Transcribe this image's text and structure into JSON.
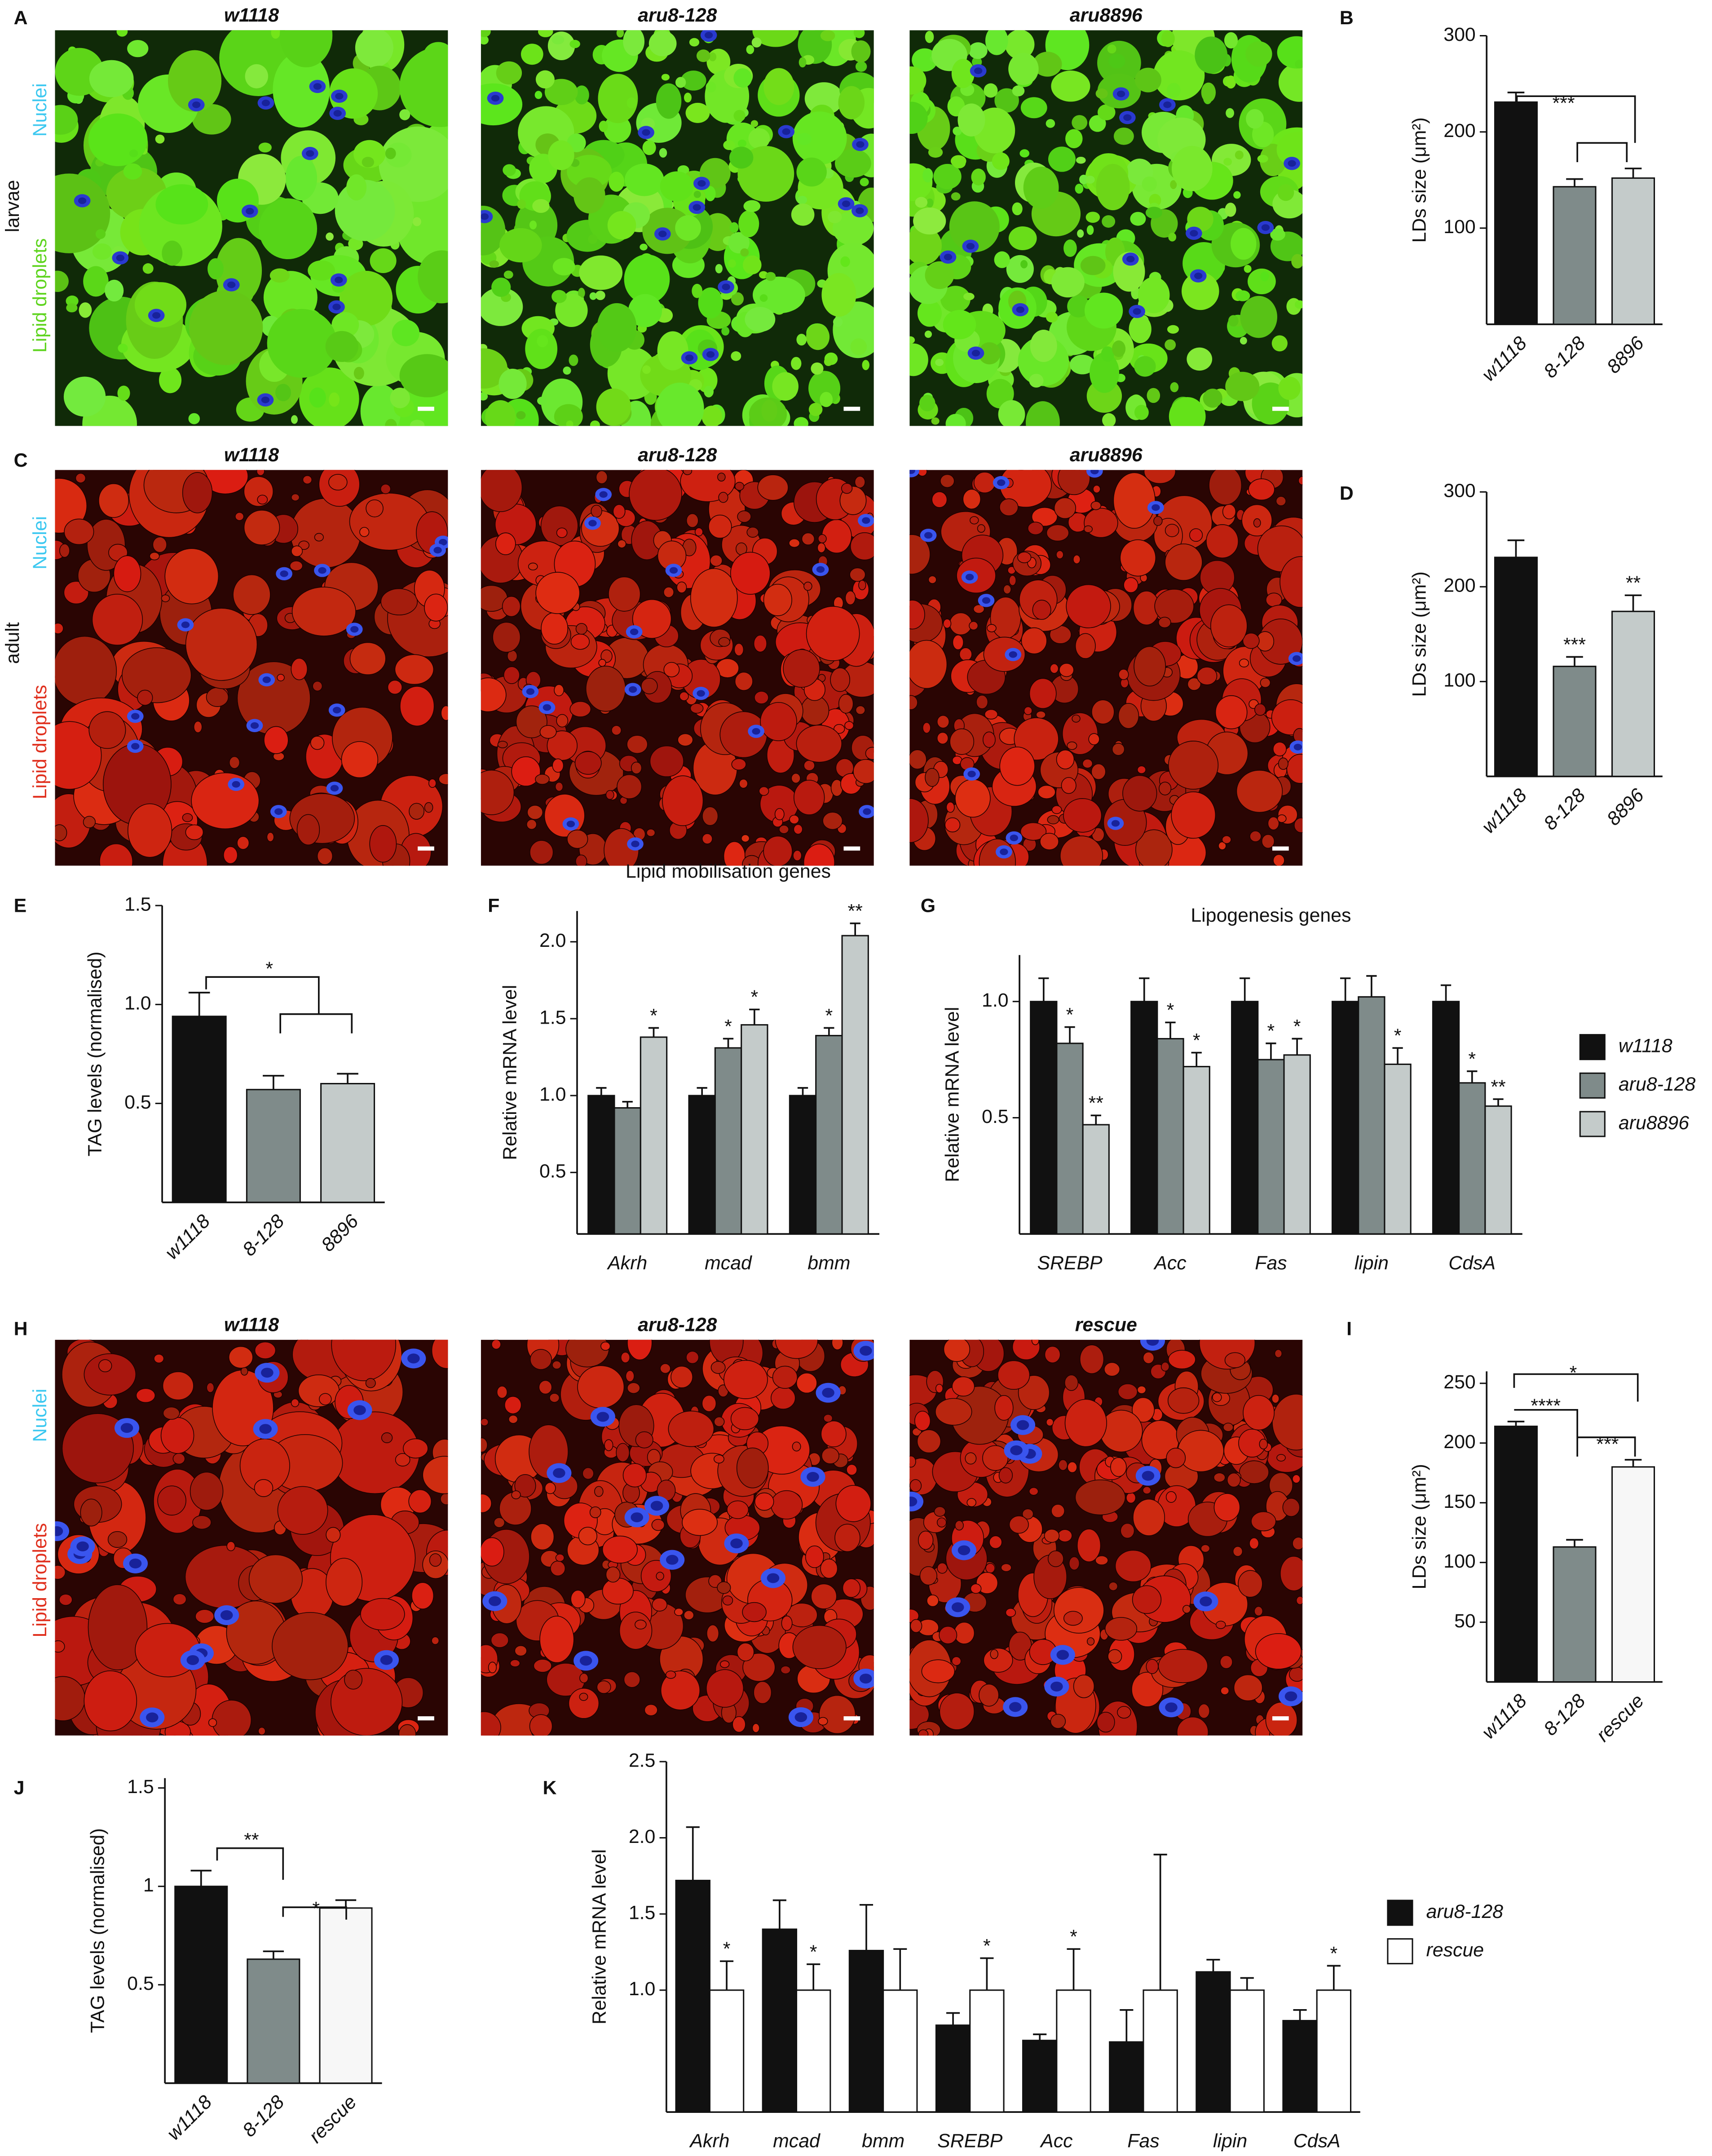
{
  "panel_labels": [
    "A",
    "B",
    "C",
    "D",
    "E",
    "F",
    "G",
    "H",
    "I",
    "J",
    "K"
  ],
  "image_rows": [
    {
      "titles": [
        "w1118",
        "aru8-128",
        "aru8896"
      ],
      "side": [
        "Nuclei",
        "larvae",
        "Lipid droplets"
      ]
    },
    {
      "titles": [
        "w1118",
        "aru8-128",
        "aru8896"
      ],
      "side": [
        "Nuclei",
        "adult",
        "Lipid droplets"
      ]
    },
    {
      "titles": [
        "w1118",
        "aru8-128",
        "rescue"
      ],
      "side": [
        "Nuclei",
        "Lipid droplets"
      ]
    }
  ],
  "chart_data": [
    {
      "type": "bar",
      "ylabel": "LDs size (μm²)",
      "categories": [
        "w1118",
        "8-128",
        "8896"
      ],
      "values": [
        231,
        143,
        152
      ],
      "errors": [
        10,
        8,
        10
      ],
      "colors": [
        "#111111",
        "#7f8b8a",
        "#c4cbca"
      ],
      "ylim": [
        0,
        300
      ],
      "yticks": [
        100,
        200,
        300
      ],
      "annotations": [
        "***"
      ]
    },
    {
      "type": "bar",
      "ylabel": "LDs size (μm²)",
      "categories": [
        "w1118",
        "8-128",
        "8896"
      ],
      "values": [
        231,
        116,
        174
      ],
      "errors": [
        18,
        10,
        17
      ],
      "colors": [
        "#111111",
        "#7f8b8a",
        "#c4cbca"
      ],
      "ylim": [
        0,
        300
      ],
      "yticks": [
        100,
        200,
        300
      ],
      "annotations": [
        "***",
        "**"
      ]
    },
    {
      "type": "bar",
      "ylabel": "TAG levels (normalised)",
      "categories": [
        "w1118",
        "8-128",
        "8896"
      ],
      "values": [
        0.94,
        0.57,
        0.6
      ],
      "errors": [
        0.12,
        0.07,
        0.05
      ],
      "colors": [
        "#111111",
        "#7f8b8a",
        "#c4cbca"
      ],
      "ylim": [
        0,
        1.5
      ],
      "yticks": [
        0.5,
        {
          "value": 1,
          "label": "1.0"
        },
        1.5
      ],
      "annotations": [
        "*"
      ]
    },
    {
      "type": "bar",
      "title": "Lipid mobilisation genes",
      "ylabel": "Relative mRNA level",
      "categories": [
        "Akrh",
        "mcad",
        "bmm"
      ],
      "series": [
        {
          "color": "#111111",
          "values": [
            1,
            1,
            1
          ],
          "errors": [
            0.05,
            0.05,
            0.05
          ]
        },
        {
          "color": "#7f8b8a",
          "values": [
            0.92,
            1.31,
            1.39
          ],
          "errors": [
            0.04,
            0.06,
            0.05
          ]
        },
        {
          "color": "#c4cbca",
          "values": [
            1.38,
            1.46,
            2.04
          ],
          "errors": [
            0.06,
            0.1,
            0.08
          ]
        }
      ],
      "ylim": [
        0.1,
        2.2
      ],
      "yticks": [
        0.5,
        {
          "value": 1,
          "label": "1.0"
        },
        1.5,
        {
          "value": 2,
          "label": "2.0"
        }
      ],
      "annotations": [
        "*",
        "*",
        "*",
        "*",
        "**"
      ]
    },
    {
      "type": "bar",
      "title": "Lipogenesis genes",
      "ylabel": "Relative mRNA level",
      "categories": [
        "SREBP",
        "Acc",
        "Fas",
        "lipin",
        "CdsA"
      ],
      "series": [
        {
          "name": "w1118",
          "color": "#111111",
          "values": [
            1,
            1,
            1,
            1,
            1
          ],
          "errors": [
            0.1,
            0.1,
            0.1,
            0.1,
            0.07
          ]
        },
        {
          "name": "aru8-128",
          "color": "#7f8b8a",
          "values": [
            0.82,
            0.84,
            0.75,
            1.02,
            0.65
          ],
          "errors": [
            0.07,
            0.07,
            0.07,
            0.09,
            0.05
          ]
        },
        {
          "name": "aru8896",
          "color": "#c4cbca",
          "values": [
            0.47,
            0.72,
            0.77,
            0.73,
            0.55
          ],
          "errors": [
            0.04,
            0.06,
            0.07,
            0.07,
            0.03
          ]
        }
      ],
      "ylim": [
        0,
        1.2
      ],
      "yticks": [
        0.5,
        {
          "value": 1,
          "label": "1.0"
        }
      ],
      "annotations": [
        "*",
        "**",
        "*",
        "*",
        "*",
        "*",
        "*",
        "*",
        "**"
      ]
    },
    {
      "type": "bar",
      "ylabel": "LDs size (μm²)",
      "categories": [
        "w1118",
        "8-128",
        "rescue"
      ],
      "values": [
        214,
        113,
        180
      ],
      "errors": [
        4,
        6,
        6
      ],
      "colors": [
        "#111111",
        "#7f8b8a",
        "#f7f7f7"
      ],
      "ylim": [
        0,
        260
      ],
      "yticks": [
        50,
        100,
        150,
        200,
        250
      ],
      "annotations": [
        "****",
        "*",
        "***"
      ]
    },
    {
      "type": "bar",
      "ylabel": "TAG levels (normalised)",
      "categories": [
        "w1118",
        "8-128",
        "rescue"
      ],
      "values": [
        1,
        0.63,
        0.89
      ],
      "errors": [
        0.08,
        0.04,
        0.04
      ],
      "colors": [
        "#111111",
        "#7f8b8a",
        "#f7f7f7"
      ],
      "ylim": [
        0,
        1.55
      ],
      "yticks": [
        0.5,
        1,
        1.5
      ],
      "annotations": [
        "**",
        "*"
      ]
    },
    {
      "type": "bar",
      "ylabel": "Relative mRNA level",
      "categories": [
        "Akrh",
        "mcad",
        "bmm",
        "SREBP",
        "Acc",
        "Fas",
        "lipin",
        "CdsA"
      ],
      "series": [
        {
          "name": "aru8-128",
          "color": "#111111",
          "values": [
            1.72,
            1.4,
            1.26,
            0.77,
            0.67,
            0.66,
            1.12,
            0.8
          ],
          "errors": [
            0.35,
            0.19,
            0.3,
            0.08,
            0.04,
            0.21,
            0.08,
            0.07
          ]
        },
        {
          "name": "rescue",
          "color": "#ffffff",
          "values": [
            1,
            1,
            1,
            1,
            1,
            1,
            1,
            1
          ],
          "errors": [
            0.19,
            0.17,
            0.27,
            0.21,
            0.27,
            0.89,
            0.08,
            0.16
          ]
        }
      ],
      "ylim": [
        0.2,
        2.5
      ],
      "yticks": [
        {
          "value": 1,
          "label": "1.0"
        },
        1.5,
        {
          "value": 2,
          "label": "2.0"
        },
        2.5
      ],
      "annotations": [
        "*",
        "*",
        "*",
        "*",
        "*"
      ]
    }
  ]
}
